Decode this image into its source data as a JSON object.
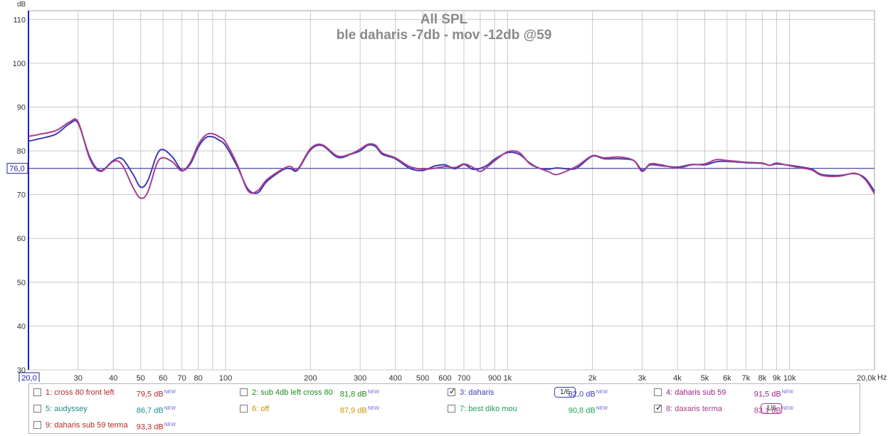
{
  "chart_data": {
    "type": "line",
    "title": "All SPL",
    "subtitle": "ble daharis -7db - mov -12db @59",
    "ylabel": "dB",
    "xlabel": "Hz",
    "xscale": "log",
    "xlim": [
      20,
      20000
    ],
    "ylim": [
      30,
      112
    ],
    "grid": true,
    "y_ticks": [
      30,
      40,
      50,
      60,
      70,
      80,
      90,
      100,
      110
    ],
    "y_tick_labels": [
      "30",
      "40",
      "50",
      "60",
      "70",
      "80",
      "90",
      "100",
      "110"
    ],
    "x_ticks": [
      30,
      40,
      50,
      60,
      70,
      80,
      100,
      200,
      300,
      400,
      500,
      600,
      700,
      900,
      1000,
      2000,
      3000,
      4000,
      5000,
      6000,
      7000,
      8000,
      9000,
      10000,
      20000
    ],
    "x_tick_labels": [
      "30",
      "40",
      "50",
      "60",
      "70",
      "80",
      "100",
      "200",
      "300",
      "400",
      "500",
      "600",
      "700",
      "900",
      "1k",
      "2k",
      "3k",
      "4k",
      "5k",
      "6k",
      "7k",
      "8k",
      "9k",
      "10k",
      "20,0k"
    ],
    "x_start_label": "20,0",
    "reference_level": 76.0,
    "reference_label": "76,0",
    "series": [
      {
        "name": "3: daharis",
        "color": "#3c3cb4",
        "x": [
          20,
          22,
          25,
          28,
          30,
          33,
          36,
          40,
          43,
          47,
          50,
          53,
          57,
          60,
          65,
          70,
          75,
          80,
          85,
          90,
          95,
          100,
          110,
          120,
          130,
          140,
          160,
          170,
          180,
          200,
          220,
          250,
          280,
          300,
          320,
          340,
          360,
          400,
          450,
          500,
          550,
          600,
          650,
          700,
          750,
          800,
          850,
          900,
          1000,
          1100,
          1200,
          1300,
          1400,
          1500,
          1700,
          1800,
          2000,
          2200,
          2500,
          2800,
          3000,
          3200,
          3500,
          4000,
          4500,
          5000,
          5500,
          6000,
          7000,
          8000,
          8500,
          9000,
          10000,
          11000,
          12000,
          13000,
          15000,
          17000,
          18500,
          20000
        ],
        "y": [
          82.2,
          82.8,
          83.8,
          86.2,
          86.3,
          78.6,
          75.5,
          77.8,
          78.2,
          74.6,
          71.7,
          73.2,
          79.0,
          80.3,
          78.5,
          75.6,
          77.0,
          80.8,
          83.0,
          83.2,
          82.4,
          81.2,
          76.4,
          71.3,
          70.4,
          73.0,
          75.7,
          75.9,
          75.6,
          80.2,
          81.2,
          78.5,
          79.3,
          80.0,
          81.3,
          81.0,
          79.2,
          78.2,
          76.0,
          75.5,
          76.5,
          76.8,
          75.9,
          76.9,
          75.8,
          76.0,
          76.8,
          78.1,
          79.6,
          79.2,
          77.2,
          76.0,
          75.8,
          76.1,
          75.8,
          76.5,
          78.8,
          78.2,
          78.2,
          77.8,
          75.6,
          76.8,
          76.6,
          76.3,
          76.9,
          76.8,
          77.5,
          77.6,
          77.3,
          77.1,
          76.7,
          77.0,
          76.7,
          76.3,
          75.8,
          74.6,
          74.4,
          74.8,
          73.8,
          70.8
        ]
      },
      {
        "name": "8: daxaris terma",
        "color": "#aa3c8c",
        "x": [
          20,
          22,
          25,
          28,
          30,
          33,
          36,
          40,
          43,
          47,
          50,
          53,
          57,
          60,
          65,
          70,
          75,
          80,
          85,
          90,
          95,
          100,
          110,
          120,
          130,
          140,
          160,
          170,
          180,
          200,
          220,
          250,
          280,
          300,
          320,
          340,
          360,
          400,
          450,
          500,
          550,
          600,
          650,
          700,
          750,
          800,
          850,
          900,
          1000,
          1100,
          1200,
          1300,
          1400,
          1500,
          1700,
          1800,
          2000,
          2200,
          2500,
          2800,
          3000,
          3200,
          3500,
          4000,
          4500,
          5000,
          5500,
          6000,
          7000,
          8000,
          8500,
          9000,
          10000,
          11000,
          12000,
          13000,
          15000,
          17000,
          18500,
          20000
        ],
        "y": [
          83.3,
          83.8,
          84.6,
          86.6,
          86.6,
          78.2,
          75.3,
          77.6,
          76.8,
          71.6,
          69.2,
          70.6,
          77.0,
          78.4,
          77.4,
          75.4,
          77.4,
          81.4,
          83.6,
          83.9,
          83.2,
          82.0,
          76.9,
          70.9,
          70.9,
          73.4,
          75.9,
          76.4,
          75.8,
          80.5,
          81.4,
          78.8,
          79.4,
          80.4,
          81.5,
          81.3,
          79.5,
          78.4,
          76.4,
          75.8,
          76.0,
          76.4,
          76.2,
          77.0,
          76.3,
          75.3,
          76.4,
          77.7,
          79.8,
          79.6,
          77.0,
          76.0,
          75.2,
          74.6,
          76.0,
          76.9,
          78.9,
          78.4,
          78.6,
          77.8,
          75.3,
          77.0,
          76.8,
          76.1,
          76.8,
          77.0,
          78.0,
          77.8,
          77.4,
          77.2,
          76.7,
          77.2,
          76.6,
          76.1,
          75.6,
          74.4,
          74.2,
          74.9,
          73.5,
          70.2
        ]
      }
    ]
  },
  "legend": {
    "new_tag": "NEW",
    "items": [
      {
        "label": "1: cross 80 front left",
        "value": "79,5 dB",
        "color": "#b42828",
        "checked": false
      },
      {
        "label": "2: sub 4db left cross 80",
        "value": "81,8 dB",
        "color": "#1e8c1e",
        "checked": false
      },
      {
        "label": "3: daharis",
        "value": "82,0 dB",
        "color": "#3c3cb4",
        "checked": true,
        "smoothing": "1/6"
      },
      {
        "label": "4: daharis sub 59",
        "value": "91,5 dB",
        "color": "#a01e8c",
        "checked": false
      },
      {
        "label": "5: audyssey",
        "value": "86,7 dB",
        "color": "#1e8c8c",
        "checked": false
      },
      {
        "label": "6: off",
        "value": "87,9 dB",
        "color": "#c89600",
        "checked": false
      },
      {
        "label": "7: best diko mou",
        "value": "90,8 dB",
        "color": "#1ea050",
        "checked": false
      },
      {
        "label": "8: daxaris terma",
        "value": "83,1 dB",
        "color": "#aa3c8c",
        "checked": true,
        "smoothing": "1/6"
      },
      {
        "label": "9: daharis sub 59 terma",
        "value": "93,3 dB",
        "color": "#b42828",
        "checked": false
      }
    ]
  }
}
